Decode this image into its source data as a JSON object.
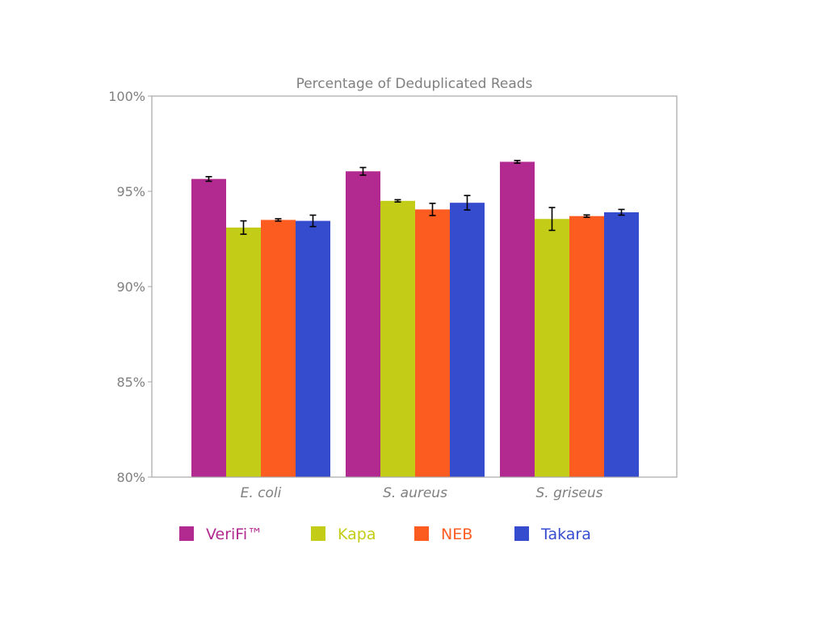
{
  "chart_data": {
    "type": "bar",
    "title": "Percentage of Deduplicated Reads",
    "xlabel": "",
    "ylabel": "",
    "categories": [
      "E. coli",
      "S. aureus",
      "S. griseus"
    ],
    "ylim": [
      80,
      100
    ],
    "yticks": [
      80,
      85,
      90,
      95,
      100
    ],
    "ytick_labels": [
      "80%",
      "85%",
      "90%",
      "95%",
      "100%"
    ],
    "grid": false,
    "legend_position": "bottom",
    "series": [
      {
        "name": "VeriFi™",
        "color": "#b22a8f",
        "values": [
          95.65,
          96.05,
          96.55
        ],
        "errors": [
          0.12,
          0.2,
          0.07
        ]
      },
      {
        "name": "Kapa",
        "color": "#c3cd17",
        "values": [
          93.1,
          94.5,
          93.55
        ],
        "errors": [
          0.35,
          0.06,
          0.6
        ]
      },
      {
        "name": "NEB",
        "color": "#fd5c21",
        "values": [
          93.5,
          94.05,
          93.7
        ],
        "errors": [
          0.06,
          0.32,
          0.06
        ]
      },
      {
        "name": "Takara",
        "color": "#364ccf",
        "values": [
          93.45,
          94.4,
          93.9
        ],
        "errors": [
          0.3,
          0.38,
          0.15
        ]
      }
    ]
  }
}
